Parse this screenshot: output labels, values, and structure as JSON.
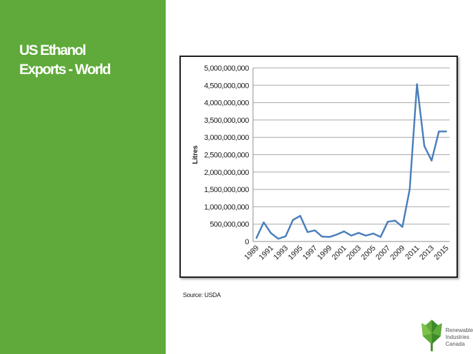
{
  "slide": {
    "title_line1": "US Ethanol",
    "title_line2": "Exports - World",
    "source": "Source: USDA"
  },
  "logo": {
    "line1": "Renewable",
    "line2": "Industries",
    "line3": "Canada",
    "icon": "maple-leaf-icon"
  },
  "colors": {
    "sidebar": "#5faa3a",
    "line": "#4a7ebb",
    "grid": "#a6a6a6"
  },
  "chart_data": {
    "type": "line",
    "title": "",
    "xlabel": "",
    "ylabel": "Litres",
    "ylim": [
      0,
      5000000000
    ],
    "yticks": [
      0,
      500000000,
      1000000000,
      1500000000,
      2000000000,
      2500000000,
      3000000000,
      3500000000,
      4000000000,
      4500000000,
      5000000000
    ],
    "ytick_labels": [
      "0",
      "500,000,000",
      "1,000,000,000",
      "1,500,000,000",
      "2,000,000,000",
      "2,500,000,000",
      "3,000,000,000",
      "3,500,000,000",
      "4,000,000,000",
      "4,500,000,000",
      "5,000,000,000"
    ],
    "grid": true,
    "legend": "none",
    "x": [
      1989,
      1990,
      1991,
      1992,
      1993,
      1994,
      1995,
      1996,
      1997,
      1998,
      1999,
      2000,
      2001,
      2002,
      2003,
      2004,
      2005,
      2006,
      2007,
      2008,
      2009,
      2010,
      2011,
      2012,
      2013,
      2014,
      2015
    ],
    "x_tick_labels": [
      "1989",
      "1991",
      "1993",
      "1995",
      "1997",
      "1999",
      "2001",
      "2003",
      "2005",
      "2007",
      "2009",
      "2011",
      "2013",
      "2015"
    ],
    "series": [
      {
        "values": [
          100000000,
          550000000,
          240000000,
          80000000,
          150000000,
          620000000,
          740000000,
          270000000,
          320000000,
          140000000,
          130000000,
          200000000,
          290000000,
          170000000,
          250000000,
          170000000,
          230000000,
          130000000,
          570000000,
          600000000,
          420000000,
          1500000000,
          4530000000,
          2750000000,
          2330000000,
          3170000000,
          3170000000
        ]
      }
    ]
  }
}
